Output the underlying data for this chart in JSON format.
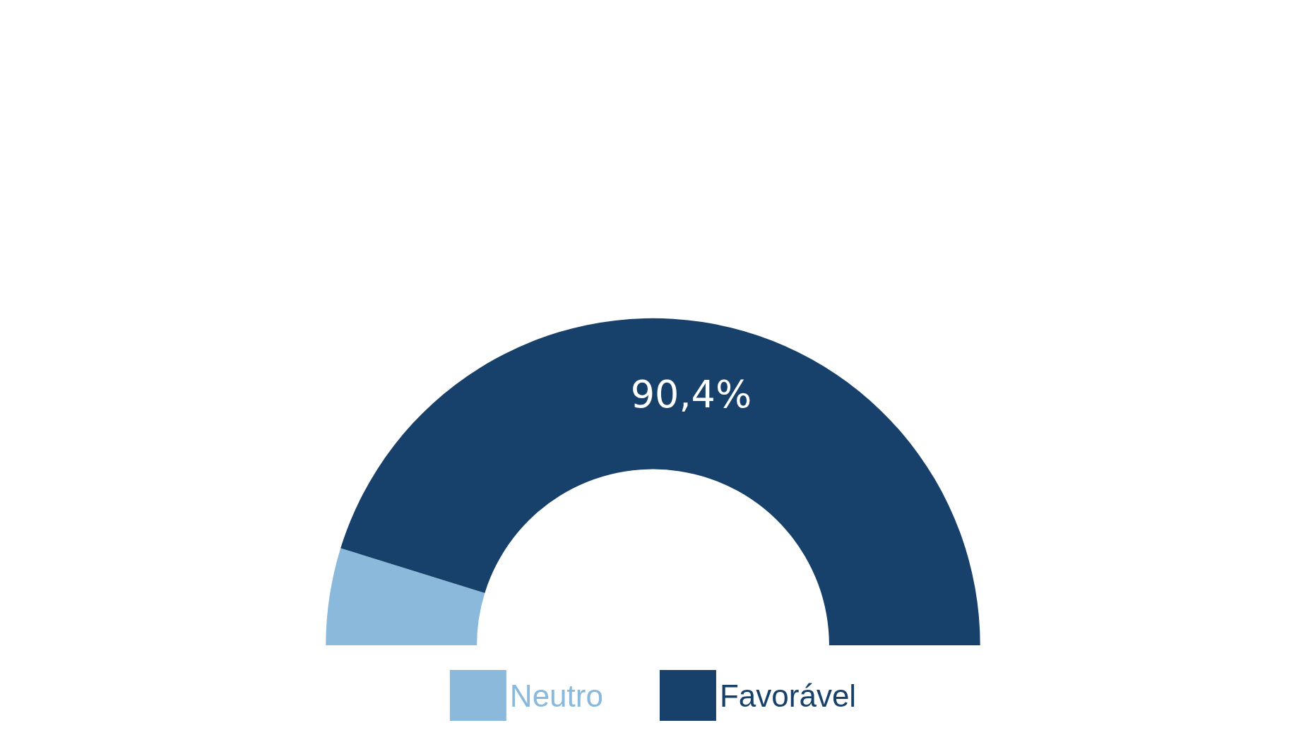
{
  "chart_data": {
    "type": "donut",
    "categories": [
      "Neutro",
      "Favorável"
    ],
    "values": [
      9.6,
      90.4
    ],
    "colors": [
      "#8bb9dc",
      "#17416b"
    ],
    "value_labels": [
      null,
      "90,4%"
    ],
    "legend": "bottom"
  }
}
